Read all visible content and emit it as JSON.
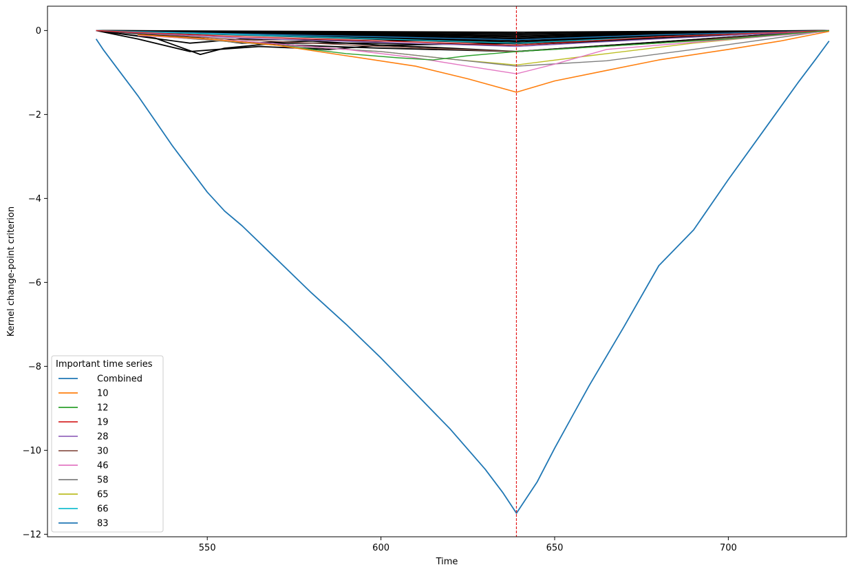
{
  "chart_data": {
    "type": "line",
    "title": "",
    "xlabel": "Time",
    "ylabel": "Kernel change-point criterion",
    "xlim": [
      504,
      734
    ],
    "ylim": [
      -12.06,
      0.58
    ],
    "xticks": [
      550,
      600,
      650,
      700
    ],
    "yticks": [
      0,
      -2,
      -4,
      -6,
      -8,
      -10,
      -12
    ],
    "xtick_labels": [
      "550",
      "600",
      "650",
      "700"
    ],
    "ytick_labels": [
      "0",
      "−2",
      "−4",
      "−6",
      "−8",
      "−10",
      "−12"
    ],
    "grid": false,
    "change_point": {
      "x": 639,
      "color": "#e41a1c",
      "style": "dashed"
    },
    "legend": {
      "title": "Important time series",
      "placement": "lower-left",
      "entries": [
        {
          "label": "Combined",
          "color": "#1f77b4"
        },
        {
          "label": "10",
          "color": "#ff7f0e"
        },
        {
          "label": "12",
          "color": "#2ca02c"
        },
        {
          "label": "19",
          "color": "#d62728"
        },
        {
          "label": "28",
          "color": "#9467bd"
        },
        {
          "label": "30",
          "color": "#8c564b"
        },
        {
          "label": "46",
          "color": "#e377c2"
        },
        {
          "label": "58",
          "color": "#7f7f7f"
        },
        {
          "label": "65",
          "color": "#bcbd22"
        },
        {
          "label": "66",
          "color": "#17becf"
        },
        {
          "label": "83",
          "color": "#1f77b4"
        }
      ]
    },
    "series": [
      {
        "name": "Combined",
        "color": "#1f77b4",
        "width": 1.8,
        "x": [
          518,
          520,
          525,
          530,
          535,
          540,
          545,
          550,
          555,
          560,
          570,
          580,
          590,
          600,
          610,
          620,
          630,
          635,
          639,
          645,
          650,
          655,
          660,
          670,
          680,
          690,
          700,
          710,
          720,
          725,
          729
        ],
        "y": [
          -0.2,
          -0.45,
          -1.0,
          -1.55,
          -2.15,
          -2.75,
          -3.3,
          -3.85,
          -4.3,
          -4.65,
          -5.45,
          -6.25,
          -7.0,
          -7.8,
          -8.65,
          -9.5,
          -10.45,
          -11.0,
          -11.5,
          -10.75,
          -9.95,
          -9.2,
          -8.45,
          -7.05,
          -5.6,
          -4.75,
          -3.55,
          -2.4,
          -1.25,
          -0.7,
          -0.25
        ]
      },
      {
        "name": "10",
        "color": "#ff7f0e",
        "width": 1.6,
        "x": [
          530,
          550,
          570,
          590,
          610,
          625,
          639,
          650,
          665,
          680,
          700,
          715,
          729
        ],
        "y": [
          -0.1,
          -0.2,
          -0.35,
          -0.6,
          -0.85,
          -1.15,
          -1.47,
          -1.2,
          -0.95,
          -0.7,
          -0.45,
          -0.25,
          -0.02
        ]
      },
      {
        "name": "12",
        "color": "#2ca02c",
        "width": 1.4,
        "x": [
          530,
          550,
          570,
          590,
          605,
          615,
          625,
          639,
          650,
          670,
          700,
          729
        ],
        "y": [
          -0.1,
          -0.2,
          -0.35,
          -0.55,
          -0.65,
          -0.7,
          -0.6,
          -0.5,
          -0.45,
          -0.35,
          -0.2,
          0
        ]
      },
      {
        "name": "19",
        "color": "#d62728",
        "width": 1.4,
        "x": [
          518,
          560,
          600,
          639,
          680,
          729
        ],
        "y": [
          0,
          -0.15,
          -0.25,
          -0.35,
          -0.15,
          0
        ]
      },
      {
        "name": "28",
        "color": "#9467bd",
        "width": 1.4,
        "x": [
          518,
          560,
          600,
          639,
          680,
          729
        ],
        "y": [
          0,
          -0.18,
          -0.28,
          -0.38,
          -0.2,
          0
        ]
      },
      {
        "name": "30",
        "color": "#8c564b",
        "width": 1.4,
        "x": [
          518,
          560,
          600,
          639,
          680,
          729
        ],
        "y": [
          0,
          -0.22,
          -0.38,
          -0.5,
          -0.3,
          0
        ]
      },
      {
        "name": "46",
        "color": "#e377c2",
        "width": 1.4,
        "x": [
          530,
          560,
          590,
          610,
          625,
          639,
          650,
          665,
          690,
          729
        ],
        "y": [
          -0.12,
          -0.25,
          -0.45,
          -0.65,
          -0.85,
          -1.03,
          -0.8,
          -0.45,
          -0.28,
          -0.02
        ]
      },
      {
        "name": "58",
        "color": "#7f7f7f",
        "width": 1.4,
        "x": [
          530,
          570,
          600,
          639,
          665,
          690,
          729
        ],
        "y": [
          -0.1,
          -0.35,
          -0.5,
          -0.85,
          -0.72,
          -0.45,
          0
        ]
      },
      {
        "name": "65",
        "color": "#bcbd22",
        "width": 1.4,
        "x": [
          530,
          570,
          600,
          620,
          639,
          660,
          690,
          729
        ],
        "y": [
          -0.1,
          -0.35,
          -0.5,
          -0.68,
          -0.82,
          -0.6,
          -0.3,
          0
        ]
      },
      {
        "name": "66",
        "color": "#17becf",
        "width": 1.4,
        "x": [
          518,
          560,
          600,
          639,
          680,
          729
        ],
        "y": [
          0,
          -0.1,
          -0.2,
          -0.3,
          -0.15,
          0
        ]
      },
      {
        "name": "83",
        "color": "#1f77b4",
        "width": 1.4,
        "x": [
          518,
          560,
          600,
          639,
          680,
          729
        ],
        "y": [
          0,
          -0.08,
          -0.15,
          -0.22,
          -0.1,
          0
        ]
      }
    ],
    "background_series": [
      {
        "color": "#000000",
        "x": [
          518,
          530,
          545,
          553,
          565,
          585,
          600,
          620,
          639,
          729
        ],
        "y": [
          0,
          -0.2,
          -0.5,
          -0.45,
          -0.38,
          -0.45,
          -0.35,
          -0.42,
          -0.5,
          0
        ]
      },
      {
        "color": "#000000",
        "x": [
          518,
          535,
          548,
          555,
          570,
          600,
          639,
          729
        ],
        "y": [
          0,
          -0.18,
          -0.57,
          -0.42,
          -0.3,
          -0.3,
          -0.35,
          0
        ]
      },
      {
        "color": "#000000",
        "x": [
          518,
          550,
          575,
          600,
          639,
          729
        ],
        "y": [
          0,
          -0.2,
          -0.35,
          -0.42,
          -0.5,
          0
        ]
      },
      {
        "color": "#000000",
        "x": [
          518,
          540,
          560,
          580,
          600,
          639,
          729
        ],
        "y": [
          0,
          -0.1,
          -0.3,
          -0.25,
          -0.35,
          -0.3,
          0
        ]
      },
      {
        "color": "#000000",
        "x": [
          518,
          545,
          560,
          600,
          639,
          729
        ],
        "y": [
          0,
          -0.3,
          -0.2,
          -0.25,
          -0.2,
          0
        ]
      },
      {
        "color": "#000000",
        "x": [
          518,
          639,
          729
        ],
        "y": [
          0,
          -0.04,
          0
        ]
      },
      {
        "color": "#000000",
        "x": [
          518,
          639,
          729
        ],
        "y": [
          0,
          -0.07,
          0
        ]
      },
      {
        "color": "#000000",
        "x": [
          518,
          639,
          729
        ],
        "y": [
          0,
          -0.1,
          0
        ]
      },
      {
        "color": "#000000",
        "x": [
          518,
          639,
          729
        ],
        "y": [
          0,
          -0.13,
          0
        ]
      },
      {
        "color": "#000000",
        "x": [
          518,
          639,
          729
        ],
        "y": [
          0,
          -0.16,
          0
        ]
      },
      {
        "color": "#000000",
        "x": [
          518,
          639,
          729
        ],
        "y": [
          0,
          -0.19,
          0
        ]
      },
      {
        "color": "#000000",
        "x": [
          518,
          639,
          729
        ],
        "y": [
          0,
          -0.22,
          0
        ]
      },
      {
        "color": "#000000",
        "x": [
          518,
          639,
          729
        ],
        "y": [
          0,
          -0.25,
          0
        ]
      },
      {
        "color": "#000000",
        "x": [
          518,
          639,
          729
        ],
        "y": [
          0,
          -0.28,
          0
        ]
      },
      {
        "color": "#000000",
        "x": [
          518,
          639,
          729
        ],
        "y": [
          0,
          -0.31,
          0
        ]
      }
    ]
  }
}
